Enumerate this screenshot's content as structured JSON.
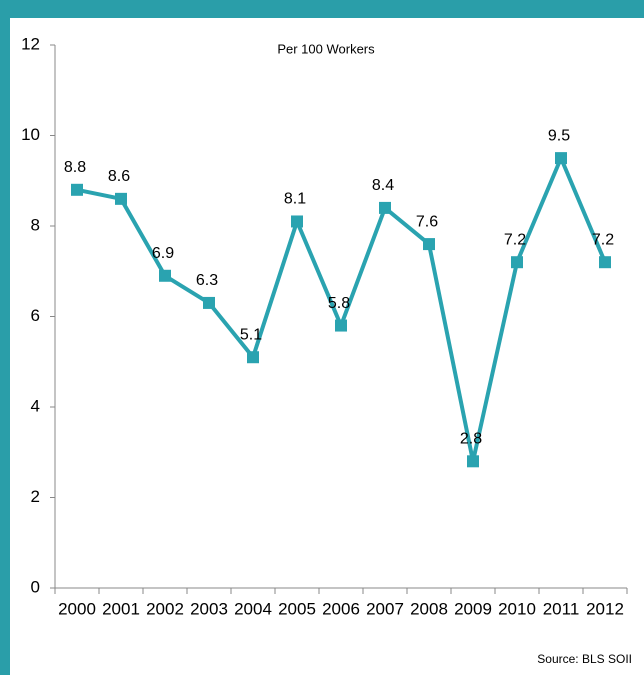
{
  "chart_data": {
    "type": "line",
    "title": "Per 100 Workers",
    "source": "Source: BLS SOII",
    "categories": [
      "2000",
      "2001",
      "2002",
      "2003",
      "2004",
      "2005",
      "2006",
      "2007",
      "2008",
      "2009",
      "2010",
      "2011",
      "2012"
    ],
    "series": [
      {
        "color": "#2aa3b0",
        "values": [
          8.8,
          8.6,
          6.9,
          6.3,
          5.1,
          8.1,
          5.8,
          8.4,
          7.6,
          2.8,
          7.2,
          9.5,
          7.2
        ]
      }
    ],
    "ylim": [
      0,
      12
    ],
    "yticks": [
      0,
      2,
      4,
      6,
      8,
      10,
      12
    ],
    "grid": false
  }
}
